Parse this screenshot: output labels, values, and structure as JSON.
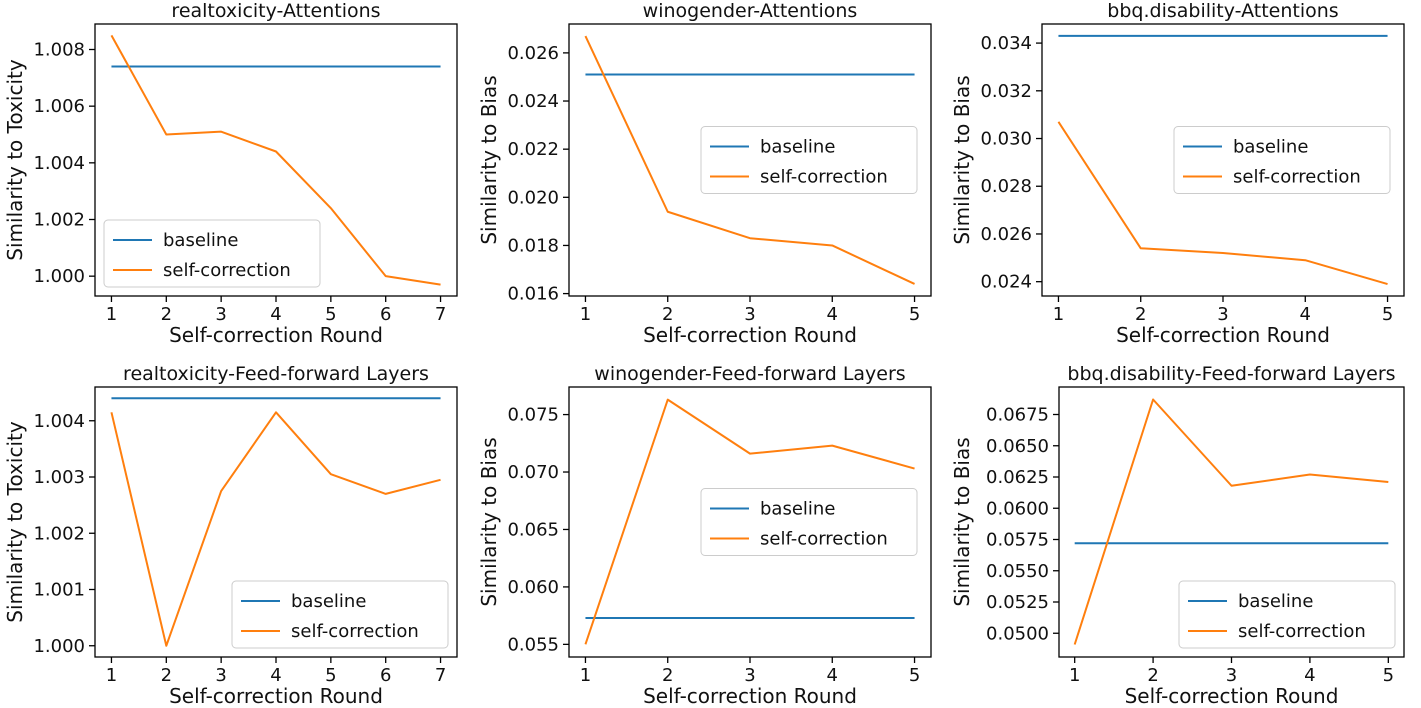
{
  "figure": {
    "background": "#ffffff",
    "axis_color": "#000000",
    "legend_border_color": "#cccccc",
    "legend_background": "#ffffff"
  },
  "chart_data": [
    {
      "type": "line",
      "title": "realtoxicity-Attentions",
      "xlabel": "Self-correction Round",
      "ylabel": "Similarity to Toxicity",
      "x": [
        1,
        2,
        3,
        4,
        5,
        6,
        7
      ],
      "xticks": [
        "1",
        "2",
        "3",
        "4",
        "5",
        "6",
        "7"
      ],
      "yticks": [
        "1.000",
        "1.002",
        "1.004",
        "1.006",
        "1.008"
      ],
      "xlim": [
        0.7,
        7.3
      ],
      "ylim": [
        0.9993,
        1.0089
      ],
      "grid": false,
      "legend_position": "lower-left",
      "series": [
        {
          "name": "baseline",
          "color": "#1f77b4",
          "values": [
            1.0074,
            1.0074,
            1.0074,
            1.0074,
            1.0074,
            1.0074,
            1.0074
          ]
        },
        {
          "name": "self-correction",
          "color": "#ff7f0e",
          "values": [
            1.0085,
            1.005,
            1.0051,
            1.0044,
            1.0024,
            1.0,
            0.9997
          ]
        }
      ]
    },
    {
      "type": "line",
      "title": "winogender-Attentions",
      "xlabel": "Self-correction Round",
      "ylabel": "Similarity to Bias",
      "x": [
        1,
        2,
        3,
        4,
        5
      ],
      "xticks": [
        "1",
        "2",
        "3",
        "4",
        "5"
      ],
      "yticks": [
        "0.016",
        "0.018",
        "0.020",
        "0.022",
        "0.024",
        "0.026"
      ],
      "xlim": [
        0.8,
        5.2
      ],
      "ylim": [
        0.0159,
        0.0272
      ],
      "grid": false,
      "legend_position": "center-right",
      "series": [
        {
          "name": "baseline",
          "color": "#1f77b4",
          "values": [
            0.0251,
            0.0251,
            0.0251,
            0.0251,
            0.0251
          ]
        },
        {
          "name": "self-correction",
          "color": "#ff7f0e",
          "values": [
            0.0267,
            0.0194,
            0.0183,
            0.018,
            0.0164
          ]
        }
      ]
    },
    {
      "type": "line",
      "title": "bbq.disability-Attentions",
      "xlabel": "Self-correction Round",
      "ylabel": "Similarity to Bias",
      "x": [
        1,
        2,
        3,
        4,
        5
      ],
      "xticks": [
        "1",
        "2",
        "3",
        "4",
        "5"
      ],
      "yticks": [
        "0.024",
        "0.026",
        "0.028",
        "0.030",
        "0.032",
        "0.034"
      ],
      "xlim": [
        0.8,
        5.2
      ],
      "ylim": [
        0.0234,
        0.0348
      ],
      "grid": false,
      "legend_position": "center-right",
      "series": [
        {
          "name": "baseline",
          "color": "#1f77b4",
          "values": [
            0.0343,
            0.0343,
            0.0343,
            0.0343,
            0.0343
          ]
        },
        {
          "name": "self-correction",
          "color": "#ff7f0e",
          "values": [
            0.0307,
            0.0254,
            0.0252,
            0.0249,
            0.0239
          ]
        }
      ]
    },
    {
      "type": "line",
      "title": "realtoxicity-Feed-forward Layers",
      "xlabel": "Self-correction Round",
      "ylabel": "Similarity to Toxicity",
      "x": [
        1,
        2,
        3,
        4,
        5,
        6,
        7
      ],
      "xticks": [
        "1",
        "2",
        "3",
        "4",
        "5",
        "6",
        "7"
      ],
      "yticks": [
        "1.000",
        "1.001",
        "1.002",
        "1.003",
        "1.004"
      ],
      "xlim": [
        0.7,
        7.3
      ],
      "ylim": [
        0.9998,
        1.0046
      ],
      "grid": false,
      "legend_position": "lower-right",
      "series": [
        {
          "name": "baseline",
          "color": "#1f77b4",
          "values": [
            1.0044,
            1.0044,
            1.0044,
            1.0044,
            1.0044,
            1.0044,
            1.0044
          ]
        },
        {
          "name": "self-correction",
          "color": "#ff7f0e",
          "values": [
            1.00415,
            1.0,
            1.00275,
            1.00415,
            1.00305,
            1.0027,
            1.00295
          ]
        }
      ]
    },
    {
      "type": "line",
      "title": "winogender-Feed-forward Layers",
      "xlabel": "Self-correction Round",
      "ylabel": "Similarity to Bias",
      "x": [
        1,
        2,
        3,
        4,
        5
      ],
      "xticks": [
        "1",
        "2",
        "3",
        "4",
        "5"
      ],
      "yticks": [
        "0.055",
        "0.060",
        "0.065",
        "0.070",
        "0.075"
      ],
      "xlim": [
        0.8,
        5.2
      ],
      "ylim": [
        0.0539,
        0.0774
      ],
      "grid": false,
      "legend_position": "center-right",
      "series": [
        {
          "name": "baseline",
          "color": "#1f77b4",
          "values": [
            0.0573,
            0.0573,
            0.0573,
            0.0573,
            0.0573
          ]
        },
        {
          "name": "self-correction",
          "color": "#ff7f0e",
          "values": [
            0.055,
            0.0763,
            0.0716,
            0.0723,
            0.0703
          ]
        }
      ]
    },
    {
      "type": "line",
      "title": "bbq.disability-Feed-forward Layers",
      "xlabel": "Self-correction Round",
      "ylabel": "Similarity to Bias",
      "x": [
        1,
        2,
        3,
        4,
        5
      ],
      "xticks": [
        "1",
        "2",
        "3",
        "4",
        "5"
      ],
      "yticks": [
        "0.0500",
        "0.0525",
        "0.0550",
        "0.0575",
        "0.0600",
        "0.0625",
        "0.0650",
        "0.0675"
      ],
      "xlim": [
        0.8,
        5.2
      ],
      "ylim": [
        0.0481,
        0.0697
      ],
      "grid": false,
      "legend_position": "lower-right",
      "series": [
        {
          "name": "baseline",
          "color": "#1f77b4",
          "values": [
            0.0572,
            0.0572,
            0.0572,
            0.0572,
            0.0572
          ]
        },
        {
          "name": "self-correction",
          "color": "#ff7f0e",
          "values": [
            0.0491,
            0.0687,
            0.0618,
            0.0627,
            0.0621
          ]
        }
      ]
    }
  ]
}
